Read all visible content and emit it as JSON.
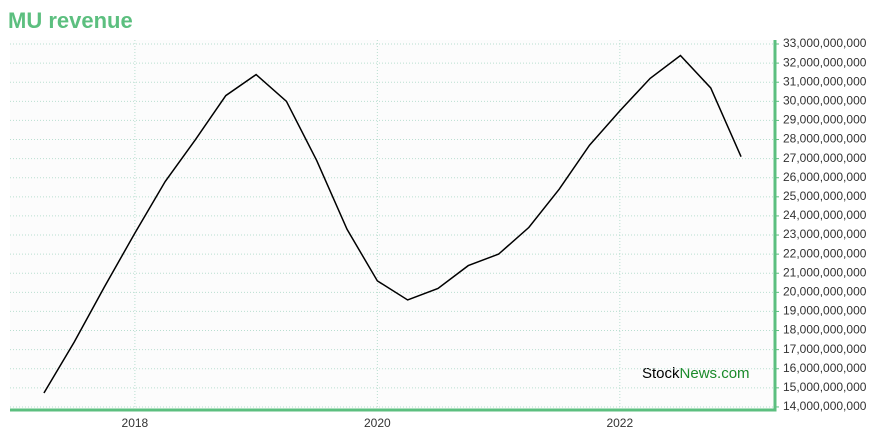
{
  "chart_data": {
    "type": "line",
    "title": "MU revenue",
    "watermark": {
      "prefix": "Stock",
      "suffix": "News.com"
    },
    "x": [
      2017.25,
      2017.5,
      2017.75,
      2018.0,
      2018.25,
      2018.5,
      2018.75,
      2019.0,
      2019.25,
      2019.5,
      2019.75,
      2020.0,
      2020.25,
      2020.5,
      2020.75,
      2021.0,
      2021.25,
      2021.5,
      2021.75,
      2022.0,
      2022.25,
      2022.5,
      2022.75,
      2023.0
    ],
    "series": [
      {
        "name": "MU revenue",
        "color": "#000000",
        "values": [
          14730000000,
          17400000000,
          20300000000,
          23100000000,
          25800000000,
          28000000000,
          30300000000,
          31400000000,
          30000000000,
          26900000000,
          23300000000,
          20600000000,
          19600000000,
          20200000000,
          21400000000,
          22000000000,
          23400000000,
          25400000000,
          27700000000,
          29500000000,
          31200000000,
          32400000000,
          30700000000,
          27100000000
        ]
      }
    ],
    "xlim": [
      2016.97,
      2023.28
    ],
    "xticks": [
      2018,
      2020,
      2022
    ],
    "ylim": [
      13840000000,
      33210000000
    ],
    "yticks": [
      {
        "value": 14000000000,
        "label": "14,000,000,000"
      },
      {
        "value": 15000000000,
        "label": "15,000,000,000"
      },
      {
        "value": 16000000000,
        "label": "16,000,000,000"
      },
      {
        "value": 17000000000,
        "label": "17,000,000,000"
      },
      {
        "value": 18000000000,
        "label": "18,000,000,000"
      },
      {
        "value": 19000000000,
        "label": "19,000,000,000"
      },
      {
        "value": 20000000000,
        "label": "20,000,000,000"
      },
      {
        "value": 21000000000,
        "label": "21,000,000,000"
      },
      {
        "value": 22000000000,
        "label": "22,000,000,000"
      },
      {
        "value": 23000000000,
        "label": "23,000,000,000"
      },
      {
        "value": 24000000000,
        "label": "24,000,000,000"
      },
      {
        "value": 25000000000,
        "label": "25,000,000,000"
      },
      {
        "value": 26000000000,
        "label": "26,000,000,000"
      },
      {
        "value": 27000000000,
        "label": "27,000,000,000"
      },
      {
        "value": 28000000000,
        "label": "28,000,000,000"
      },
      {
        "value": 29000000000,
        "label": "29,000,000,000"
      },
      {
        "value": 30000000000,
        "label": "30,000,000,000"
      },
      {
        "value": 31000000000,
        "label": "31,000,000,000"
      },
      {
        "value": 32000000000,
        "label": "32,000,000,000"
      },
      {
        "value": 33000000000,
        "label": "33,000,000,000"
      }
    ],
    "grid": true,
    "axis_color": "#5cbf7f"
  }
}
